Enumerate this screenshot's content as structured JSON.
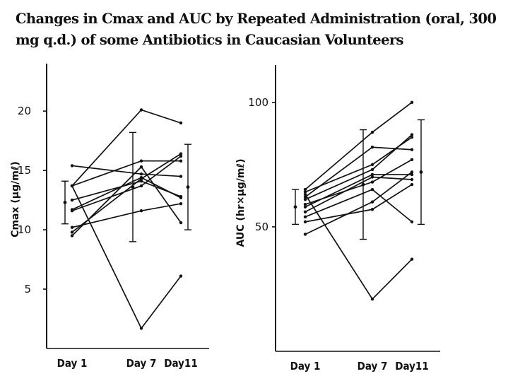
{
  "title": "Changes in Cmax and AUC by Repeated Administration (oral, 300 mg q.d.) of some Antibiotics in Caucasian Volunteers",
  "chart_data": [
    {
      "type": "line",
      "ylabel": "Cmax (μg/mℓ)",
      "categories": [
        "Day 1",
        "Day 7",
        "Day11"
      ],
      "ylim": [
        0,
        24
      ],
      "yticks": [
        5,
        10,
        15,
        20
      ],
      "grid": false,
      "legend": "none",
      "subjects": [
        {
          "values": [
            15.4,
            14.7,
            14.5
          ]
        },
        {
          "values": [
            13.7,
            15.8,
            15.8
          ]
        },
        {
          "values": [
            13.7,
            20.1,
            19.0
          ]
        },
        {
          "values": [
            12.5,
            14.1,
            12.8
          ]
        },
        {
          "values": [
            11.7,
            14.4,
            12.7
          ]
        },
        {
          "values": [
            11.6,
            13.7,
            16.2
          ]
        },
        {
          "values": [
            10.2,
            11.6,
            12.2
          ]
        },
        {
          "values": [
            9.8,
            14.3,
            16.4
          ]
        },
        {
          "values": [
            9.5,
            15.3,
            10.6
          ]
        },
        {
          "values": [
            13.7,
            1.7,
            6.1
          ]
        }
      ],
      "mean_sd": [
        {
          "mean": 12.3,
          "sd": 1.8
        },
        {
          "mean": 13.6,
          "sd": 4.6
        },
        {
          "mean": 13.6,
          "sd": 3.6
        }
      ]
    },
    {
      "type": "line",
      "ylabel": "AUC (hr×μg/mℓ)",
      "categories": [
        "Day 1",
        "Day 7",
        "Day11"
      ],
      "ylim": [
        0,
        115
      ],
      "yticks": [
        50,
        100
      ],
      "grid": false,
      "legend": "none",
      "subjects": [
        {
          "values": [
            65,
            88,
            100
          ]
        },
        {
          "values": [
            64,
            75,
            86
          ]
        },
        {
          "values": [
            62,
            82,
            81
          ]
        },
        {
          "values": [
            61,
            73,
            87
          ]
        },
        {
          "values": [
            59,
            68,
            77
          ]
        },
        {
          "values": [
            58,
            71,
            71
          ]
        },
        {
          "values": [
            56,
            70,
            69
          ]
        },
        {
          "values": [
            54,
            65,
            52
          ]
        },
        {
          "values": [
            52,
            57,
            67
          ]
        },
        {
          "values": [
            47,
            60,
            72
          ]
        },
        {
          "values": [
            63,
            21,
            37
          ]
        }
      ],
      "mean_sd": [
        {
          "mean": 58,
          "sd": 7
        },
        {
          "mean": 67,
          "sd": 22
        },
        {
          "mean": 72,
          "sd": 21
        }
      ]
    }
  ]
}
